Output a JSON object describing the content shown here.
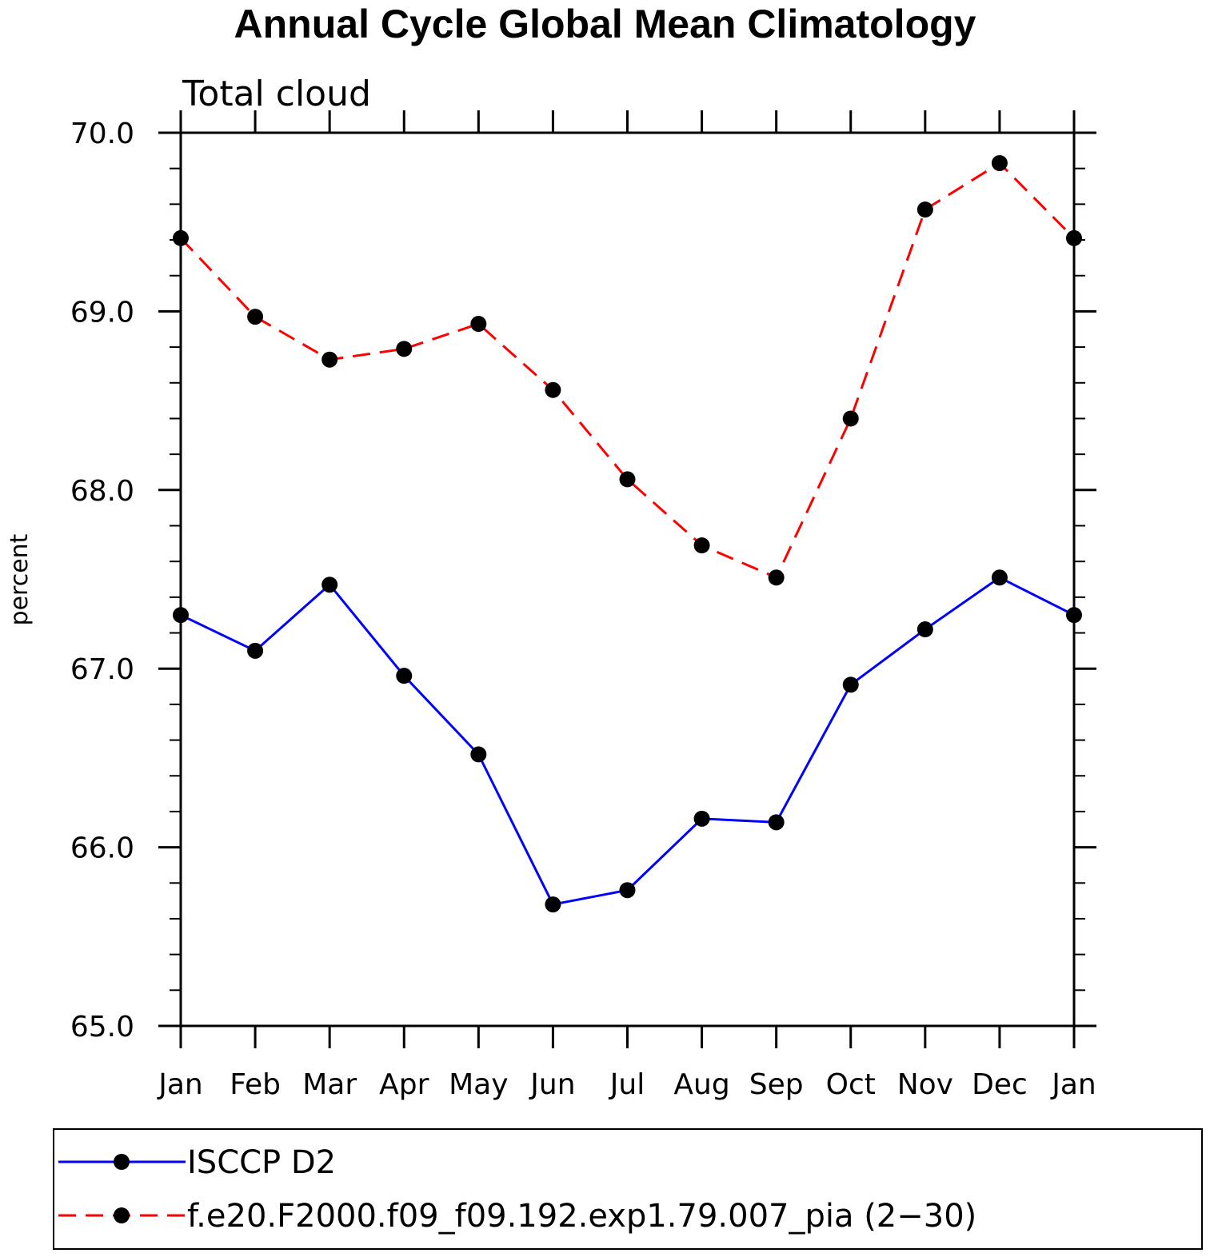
{
  "chart_data": {
    "type": "line",
    "title": "Annual Cycle Global Mean Climatology",
    "subtitle": "Total cloud",
    "xlabel": "",
    "ylabel": "percent",
    "categories": [
      "Jan",
      "Feb",
      "Mar",
      "Apr",
      "May",
      "Jun",
      "Jul",
      "Aug",
      "Sep",
      "Oct",
      "Nov",
      "Dec",
      "Jan"
    ],
    "ylim": [
      65.0,
      70.0
    ],
    "yticks": [
      "65.0",
      "66.0",
      "67.0",
      "68.0",
      "69.0",
      "70.0"
    ],
    "grid": false,
    "legend_position": "bottom",
    "series": [
      {
        "name": "ISCCP D2",
        "color": "#0000ff",
        "dash": "solid",
        "values": [
          67.3,
          67.1,
          67.47,
          66.96,
          66.52,
          65.68,
          65.76,
          66.16,
          66.14,
          66.91,
          67.22,
          67.51,
          67.3
        ]
      },
      {
        "name": "f.e20.F2000.f09_f09.192.exp1.79.007_pia (2−30)",
        "color": "#ff0000",
        "dash": "dashed",
        "values": [
          69.41,
          68.97,
          68.73,
          68.79,
          68.93,
          68.56,
          68.06,
          67.69,
          67.51,
          68.4,
          69.57,
          69.83,
          69.41
        ]
      }
    ]
  }
}
